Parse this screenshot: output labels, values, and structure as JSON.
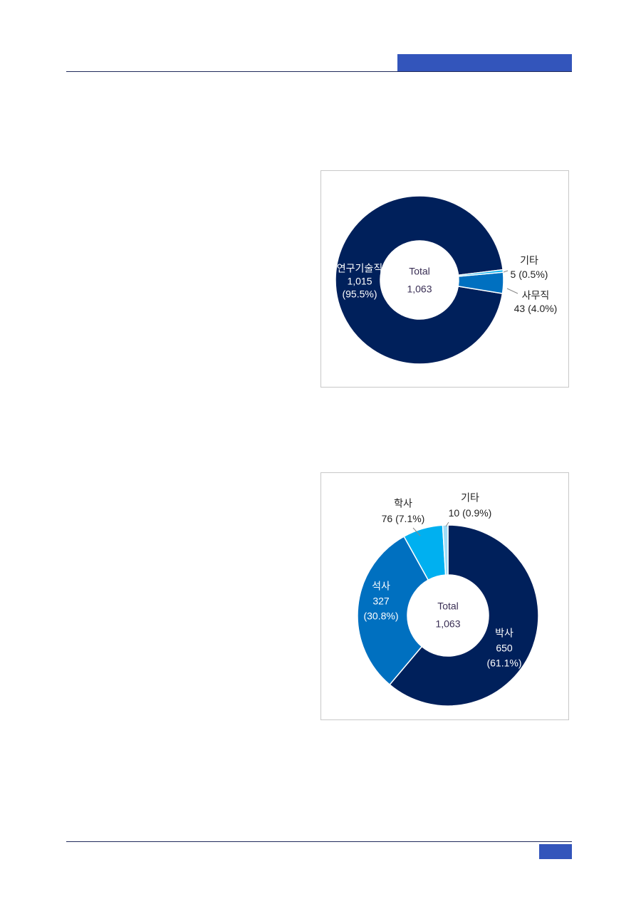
{
  "chart_data": [
    {
      "type": "donut",
      "center_title": "Total",
      "total": 1063,
      "total_label": "1,063",
      "categories": [
        "연구기술직",
        "사무직",
        "기타"
      ],
      "values": [
        1015,
        43,
        5
      ],
      "value_labels": [
        "1,015",
        "43",
        "5"
      ],
      "shares": [
        95.5,
        4.0,
        0.5
      ],
      "share_labels": [
        "(95.5%)",
        "(4.0%)",
        "(0.5%)"
      ],
      "colors": [
        "#00205b",
        "#0070c0",
        "#00b0f0"
      ]
    },
    {
      "type": "donut",
      "center_title": "Total",
      "total": 1063,
      "total_label": "1,063",
      "categories": [
        "박사",
        "석사",
        "학사",
        "기타"
      ],
      "values": [
        650,
        327,
        76,
        10
      ],
      "value_labels": [
        "650",
        "327",
        "76",
        "10"
      ],
      "shares": [
        61.1,
        30.8,
        7.1,
        0.9
      ],
      "share_labels": [
        "(61.1%)",
        "(30.8%)",
        "(7.1%)",
        "(0.9%)"
      ],
      "colors": [
        "#00205b",
        "#0070c0",
        "#00b0f0",
        "#9fdcf7"
      ]
    }
  ]
}
